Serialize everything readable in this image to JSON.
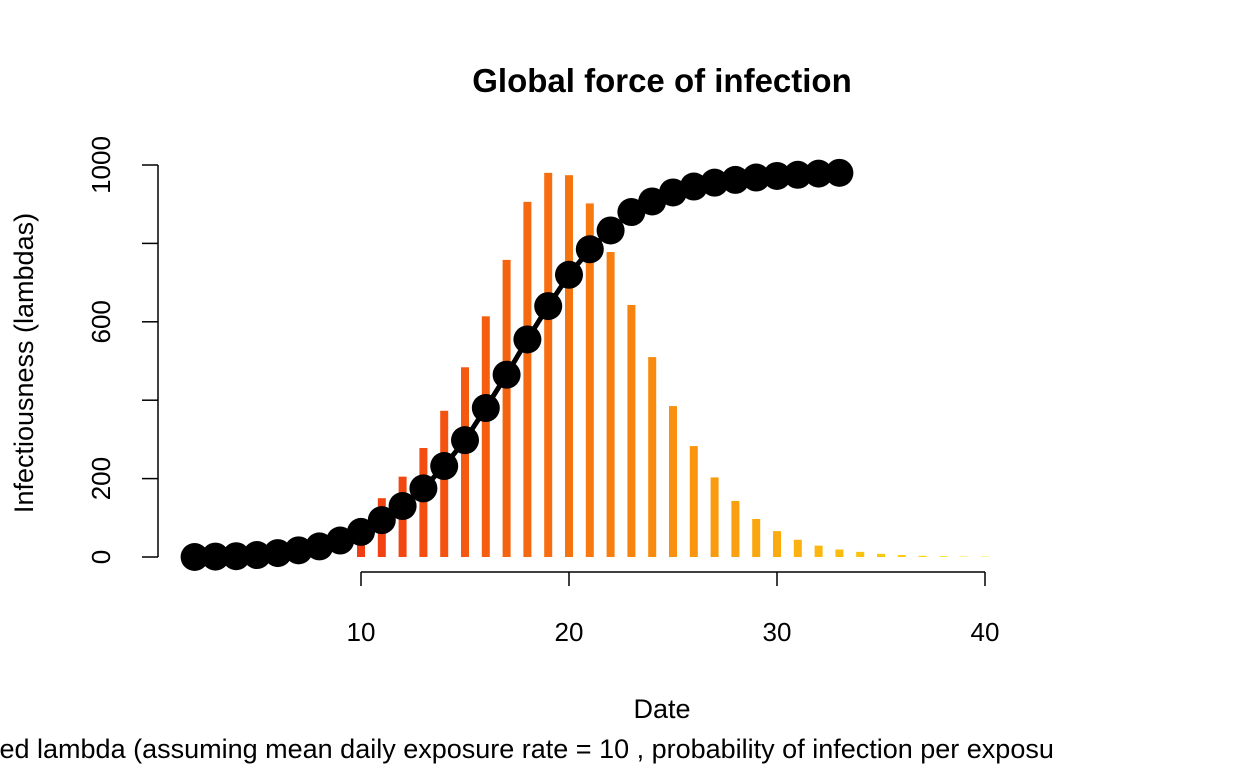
{
  "chart_data": {
    "type": "bar",
    "title": "Global force of infection",
    "xlabel": "Date",
    "ylabel": "Infectiousness (lambdas)",
    "subtitle": "ted lambda (assuming mean daily exposure rate = 10 , probability of infection per exposu",
    "xlim": [
      2,
      40
    ],
    "ylim": [
      0,
      1000
    ],
    "xticks": [
      10,
      20,
      30,
      40
    ],
    "yticks": [
      0,
      200,
      600,
      1000
    ],
    "bar_color_start": "#f23c12",
    "bar_color_end": "#ffe30d",
    "line_color": "#000000",
    "series": [
      {
        "kind": "bar",
        "x": [
          10,
          11,
          12,
          13,
          14,
          15,
          16,
          17,
          18,
          19,
          20,
          21,
          22,
          23,
          24,
          25,
          26,
          27,
          28,
          29,
          30,
          31,
          32,
          33,
          34,
          35,
          36,
          37,
          38,
          39,
          40
        ],
        "values": [
          88,
          150,
          205,
          278,
          373,
          484,
          614,
          758,
          906,
          980,
          974,
          902,
          778,
          643,
          510,
          385,
          283,
          203,
          143,
          97,
          66,
          44,
          29,
          19,
          13,
          8,
          5,
          3,
          2,
          1,
          1
        ]
      },
      {
        "kind": "points",
        "x": [
          2,
          3,
          4,
          5,
          6,
          7,
          8,
          9,
          10,
          11,
          12,
          13,
          14,
          15,
          16,
          17,
          18,
          19,
          20,
          21,
          22,
          23,
          24,
          25,
          26,
          27,
          28,
          29,
          30,
          31,
          32,
          33
        ],
        "values": [
          0,
          1,
          2,
          5,
          10,
          17,
          27,
          42,
          64,
          94,
          130,
          175,
          232,
          298,
          380,
          465,
          555,
          640,
          720,
          785,
          833,
          880,
          907,
          930,
          945,
          955,
          962,
          968,
          972,
          975,
          978,
          980
        ]
      }
    ]
  }
}
